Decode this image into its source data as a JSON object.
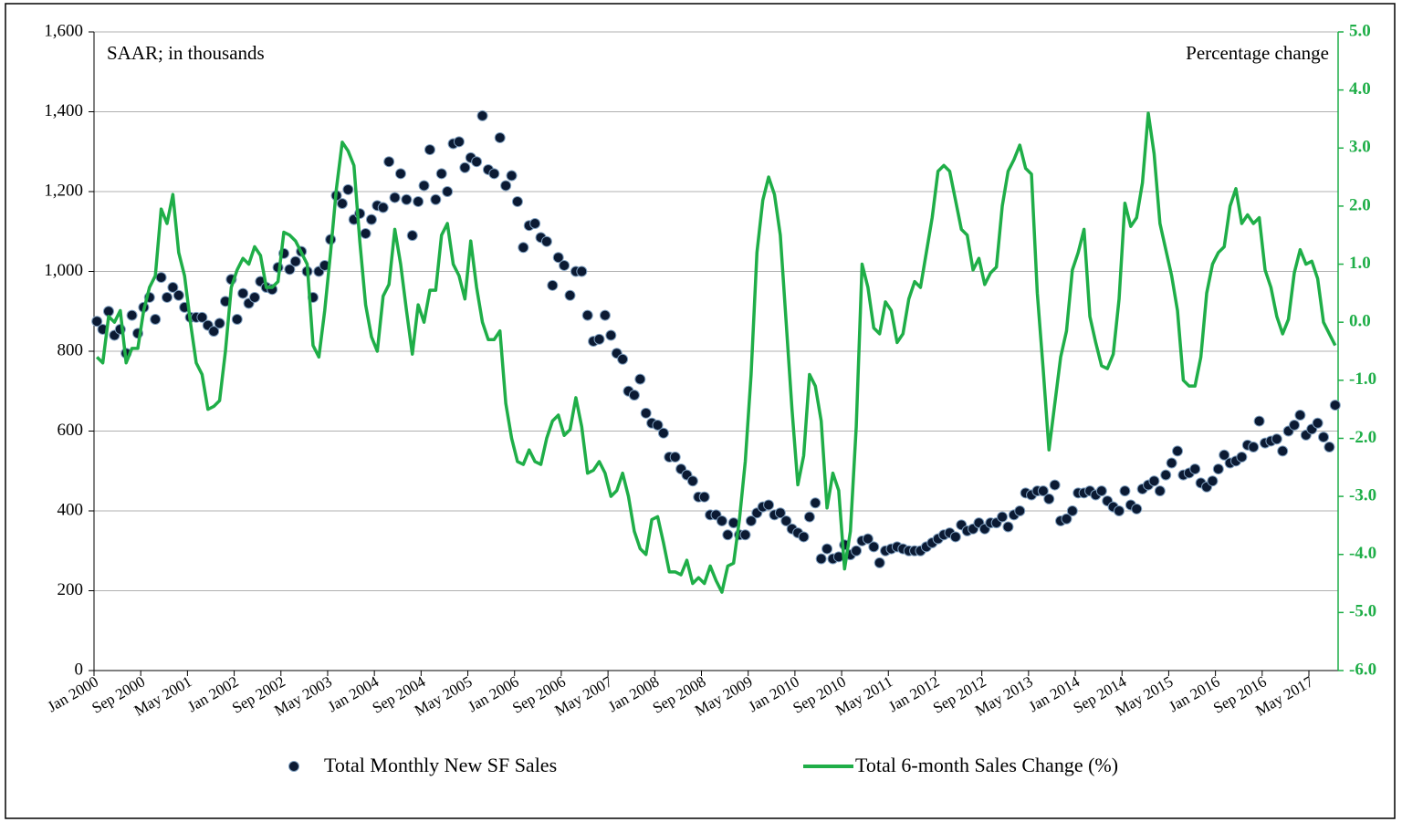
{
  "chart_data": {
    "type": "line",
    "annotations": [
      "SAAR; in thousands",
      "Percentage change"
    ],
    "categories": [
      "Jan 2000",
      null,
      null,
      null,
      null,
      null,
      null,
      null,
      "Sep 2000",
      null,
      null,
      null,
      null,
      null,
      null,
      null,
      "May 2001",
      null,
      null,
      null,
      null,
      null,
      null,
      null,
      "Jan 2002",
      null,
      null,
      null,
      null,
      null,
      null,
      null,
      "Sep 2002",
      null,
      null,
      null,
      null,
      null,
      null,
      null,
      "May 2003",
      null,
      null,
      null,
      null,
      null,
      null,
      null,
      "Jan 2004",
      null,
      null,
      null,
      null,
      null,
      null,
      null,
      "Sep 2004",
      null,
      null,
      null,
      null,
      null,
      null,
      null,
      "May 2005",
      null,
      null,
      null,
      null,
      null,
      null,
      null,
      "Jan 2006",
      null,
      null,
      null,
      null,
      null,
      null,
      null,
      "Sep 2006",
      null,
      null,
      null,
      null,
      null,
      null,
      null,
      "May 2007",
      null,
      null,
      null,
      null,
      null,
      null,
      null,
      "Jan 2008",
      null,
      null,
      null,
      null,
      null,
      null,
      null,
      "Sep 2008",
      null,
      null,
      null,
      null,
      null,
      null,
      null,
      "May 2009",
      null,
      null,
      null,
      null,
      null,
      null,
      null,
      "Jan 2010",
      null,
      null,
      null,
      null,
      null,
      null,
      null,
      "Sep 2010",
      null,
      null,
      null,
      null,
      null,
      null,
      null,
      "May 2011",
      null,
      null,
      null,
      null,
      null,
      null,
      null,
      "Jan 2012",
      null,
      null,
      null,
      null,
      null,
      null,
      null,
      "Sep 2012",
      null,
      null,
      null,
      null,
      null,
      null,
      null,
      "May 2013",
      null,
      null,
      null,
      null,
      null,
      null,
      null,
      "Jan 2014",
      null,
      null,
      null,
      null,
      null,
      null,
      null,
      "Sep 2014",
      null,
      null,
      null,
      null,
      null,
      null,
      null,
      "May 2015",
      null,
      null,
      null,
      null,
      null,
      null,
      null,
      "Jan 2016",
      null,
      null,
      null,
      null,
      null,
      null,
      null,
      "Sep 2016",
      null,
      null,
      null,
      null,
      null,
      null,
      null,
      "May 2017",
      null,
      null,
      null,
      null
    ],
    "series": [
      {
        "name": "Total Monthly New SF Sales",
        "type": "scatter",
        "axis": "y",
        "color": "#0b1a33",
        "values": [
          875,
          855,
          900,
          840,
          855,
          795,
          890,
          845,
          910,
          935,
          880,
          985,
          935,
          960,
          940,
          910,
          885,
          885,
          885,
          865,
          850,
          870,
          925,
          980,
          880,
          945,
          920,
          935,
          975,
          960,
          955,
          1010,
          1045,
          1005,
          1025,
          1050,
          1000,
          935,
          1000,
          1015,
          1080,
          1190,
          1170,
          1205,
          1130,
          1145,
          1095,
          1130,
          1165,
          1160,
          1275,
          1185,
          1245,
          1180,
          1090,
          1175,
          1215,
          1305,
          1180,
          1245,
          1200,
          1320,
          1325,
          1260,
          1285,
          1275,
          1390,
          1255,
          1245,
          1335,
          1215,
          1240,
          1175,
          1060,
          1115,
          1120,
          1085,
          1075,
          965,
          1035,
          1015,
          940,
          1000,
          1000,
          890,
          825,
          830,
          890,
          840,
          795,
          780,
          700,
          690,
          730,
          645,
          620,
          615,
          595,
          535,
          535,
          505,
          490,
          475,
          435,
          435,
          390,
          390,
          375,
          340,
          370,
          340,
          340,
          375,
          395,
          410,
          415,
          390,
          395,
          375,
          355,
          345,
          335,
          385,
          420,
          280,
          305,
          280,
          285,
          315,
          290,
          300,
          325,
          330,
          310,
          270,
          300,
          305,
          310,
          305,
          300,
          300,
          300,
          310,
          320,
          330,
          340,
          345,
          335,
          365,
          350,
          355,
          370,
          355,
          370,
          370,
          385,
          360,
          390,
          400,
          445,
          440,
          450,
          450,
          430,
          465,
          375,
          380,
          400,
          445,
          445,
          450,
          440,
          450,
          425,
          410,
          400,
          450,
          415,
          405,
          455,
          465,
          475,
          450,
          490,
          520,
          550,
          490,
          495,
          505,
          470,
          460,
          475,
          505,
          540,
          520,
          525,
          535,
          565,
          560,
          625,
          570,
          575,
          580,
          550,
          600,
          615,
          640,
          590,
          605,
          620,
          585,
          560,
          665
        ]
      },
      {
        "name": "Total 6-month Sales Change (%)",
        "type": "line",
        "axis": "y2",
        "color": "#1fae48",
        "values": [
          -0.6,
          -0.7,
          0.1,
          0.0,
          0.2,
          -0.7,
          -0.45,
          -0.45,
          0.2,
          0.6,
          0.8,
          1.95,
          1.7,
          2.2,
          1.2,
          0.8,
          0.0,
          -0.7,
          -0.9,
          -1.5,
          -1.45,
          -1.35,
          -0.5,
          0.6,
          0.9,
          1.1,
          1.0,
          1.3,
          1.15,
          0.6,
          0.6,
          0.7,
          1.55,
          1.5,
          1.4,
          1.2,
          1.0,
          -0.4,
          -0.6,
          0.2,
          1.2,
          2.3,
          3.1,
          2.95,
          2.7,
          1.4,
          0.3,
          -0.25,
          -0.5,
          0.45,
          0.65,
          1.6,
          1.0,
          0.2,
          -0.55,
          0.3,
          0.0,
          0.55,
          0.55,
          1.5,
          1.7,
          1.0,
          0.8,
          0.4,
          1.4,
          0.6,
          0.0,
          -0.3,
          -0.3,
          -0.15,
          -1.4,
          -2.0,
          -2.4,
          -2.45,
          -2.2,
          -2.4,
          -2.45,
          -2.0,
          -1.7,
          -1.6,
          -1.95,
          -1.85,
          -1.3,
          -1.8,
          -2.6,
          -2.55,
          -2.4,
          -2.6,
          -3.0,
          -2.9,
          -2.6,
          -3.0,
          -3.6,
          -3.9,
          -4.0,
          -3.4,
          -3.35,
          -3.8,
          -4.3,
          -4.3,
          -4.35,
          -4.1,
          -4.5,
          -4.4,
          -4.5,
          -4.2,
          -4.45,
          -4.65,
          -4.2,
          -4.15,
          -3.4,
          -2.4,
          -0.9,
          1.2,
          2.1,
          2.5,
          2.2,
          1.5,
          0.0,
          -1.5,
          -2.8,
          -2.3,
          -0.9,
          -1.1,
          -1.7,
          -3.2,
          -2.6,
          -2.9,
          -4.25,
          -3.6,
          -1.8,
          1.0,
          0.6,
          -0.1,
          -0.2,
          0.35,
          0.2,
          -0.35,
          -0.2,
          0.4,
          0.7,
          0.6,
          1.2,
          1.8,
          2.6,
          2.7,
          2.6,
          2.1,
          1.6,
          1.5,
          0.9,
          1.1,
          0.65,
          0.85,
          0.95,
          2.0,
          2.6,
          2.8,
          3.05,
          2.65,
          2.55,
          0.5,
          -0.8,
          -2.2,
          -1.4,
          -0.6,
          -0.15,
          0.9,
          1.2,
          1.6,
          0.1,
          -0.35,
          -0.75,
          -0.8,
          -0.55,
          0.4,
          2.05,
          1.65,
          1.8,
          2.4,
          3.6,
          2.9,
          1.7,
          1.25,
          0.8,
          0.2,
          -1.0,
          -1.1,
          -1.1,
          -0.6,
          0.5,
          1.0,
          1.2,
          1.3,
          2.0,
          2.3,
          1.7,
          1.85,
          1.7,
          1.8,
          0.9,
          0.6,
          0.1,
          -0.2,
          0.05,
          0.85,
          1.25,
          1.0,
          1.05,
          0.75,
          0.0,
          -0.2,
          -0.4
        ]
      }
    ],
    "ylim": [
      0,
      1600
    ],
    "yticks": [
      0,
      200,
      400,
      600,
      800,
      {
        "value": 1000,
        "label": "1,000"
      },
      {
        "value": 1200,
        "label": "1,200"
      },
      {
        "value": 1400,
        "label": "1,400"
      },
      {
        "value": 1600,
        "label": "1,600"
      }
    ],
    "y2lim": [
      -6,
      5
    ],
    "y2ticks": [
      {
        "value": -6,
        "label": "-6.0"
      },
      {
        "value": -5,
        "label": "-5.0"
      },
      {
        "value": -4,
        "label": "-4.0"
      },
      {
        "value": -3,
        "label": "-3.0"
      },
      {
        "value": -2,
        "label": "-2.0"
      },
      {
        "value": -1,
        "label": "-1.0"
      },
      {
        "value": 0,
        "label": "0.0"
      },
      {
        "value": 1,
        "label": "1.0"
      },
      {
        "value": 2,
        "label": "2.0"
      },
      {
        "value": 3,
        "label": "3.0"
      },
      {
        "value": 4,
        "label": "4.0"
      },
      {
        "value": 5,
        "label": "5.0"
      }
    ],
    "grid": true,
    "legend": "bottom"
  }
}
